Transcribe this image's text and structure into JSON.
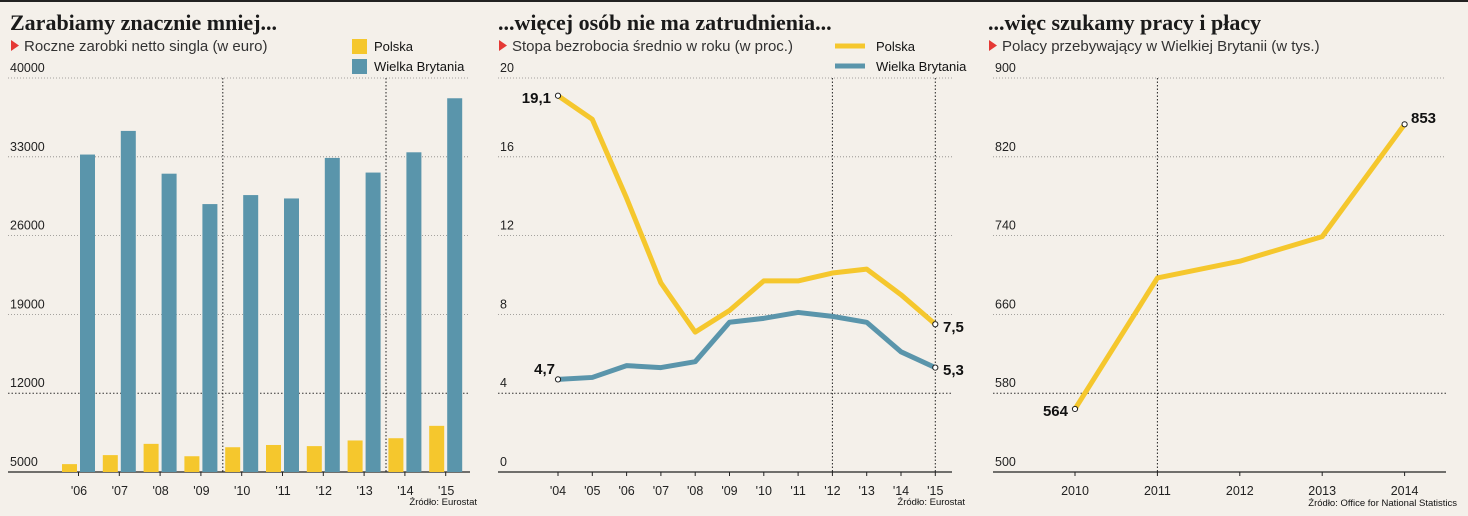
{
  "colors": {
    "pl": "#f5c72d",
    "gb": "#5a95ab",
    "axis": "#333333",
    "marker": "#e53935",
    "bg": "#f4f0ea"
  },
  "chart_data": [
    {
      "type": "bar",
      "title": "Zarabiamy znacznie mniej...",
      "subtitle": "Roczne zarobki netto singla (w euro)",
      "categories": [
        "'06",
        "'07",
        "'08",
        "'09",
        "'10",
        "'11",
        "'12",
        "'13",
        "'14",
        "'15"
      ],
      "series": [
        {
          "name": "Polska",
          "values": [
            5700,
            6500,
            7500,
            6400,
            7200,
            7400,
            7300,
            7800,
            8000,
            9100
          ]
        },
        {
          "name": "Wielka Brytania",
          "values": [
            33200,
            35300,
            31500,
            28800,
            29600,
            29300,
            32900,
            31600,
            33400,
            38200
          ]
        }
      ],
      "yticks": [
        40000,
        33000,
        26000,
        19000,
        12000,
        5000
      ],
      "ylim": [
        5000,
        40000
      ],
      "dashed_y": [
        12000
      ],
      "dashed_x_after": [
        "'09",
        "'13"
      ],
      "legend_position": "top-right",
      "source": "Źródło: Eurostat"
    },
    {
      "type": "line",
      "title": "...więcej osób nie ma zatrudnienia...",
      "subtitle": "Stopa bezrobocia średnio w roku (w proc.)",
      "x": [
        "'04",
        "'05",
        "'06",
        "'07",
        "'08",
        "'09",
        "'10",
        "'11",
        "'12",
        "'13",
        "'14",
        "'15"
      ],
      "series": [
        {
          "name": "Polska",
          "values": [
            19.1,
            17.9,
            13.9,
            9.6,
            7.1,
            8.2,
            9.7,
            9.7,
            10.1,
            10.3,
            9.0,
            7.5
          ]
        },
        {
          "name": "Wielka Brytania",
          "values": [
            4.7,
            4.8,
            5.4,
            5.3,
            5.6,
            7.6,
            7.8,
            8.1,
            7.9,
            7.6,
            6.1,
            5.3
          ]
        }
      ],
      "yticks": [
        20,
        16,
        12,
        8,
        4,
        0
      ],
      "ylim": [
        0,
        20
      ],
      "dashed_y": [
        4
      ],
      "dashed_x": [
        "'12",
        "'15"
      ],
      "labels": [
        "19,1",
        "4,7",
        "7,5",
        "5,3"
      ],
      "legend_position": "top-right",
      "source": "Źródło: Eurostat"
    },
    {
      "type": "line",
      "title": "...więc szukamy pracy i płacy",
      "subtitle": "Polacy przebywający w Wielkiej Brytanii (w tys.)",
      "x": [
        "2010",
        "2011",
        "2012",
        "2013",
        "2014"
      ],
      "series": [
        {
          "values": [
            564,
            697,
            714,
            739,
            853
          ]
        }
      ],
      "yticks": [
        900,
        820,
        740,
        660,
        580,
        500
      ],
      "ylim": [
        500,
        900
      ],
      "dashed_y": [
        580
      ],
      "dashed_x": [
        "2011"
      ],
      "labels": [
        "564",
        "853"
      ],
      "source": "Źródło: Office for National Statistics"
    }
  ]
}
